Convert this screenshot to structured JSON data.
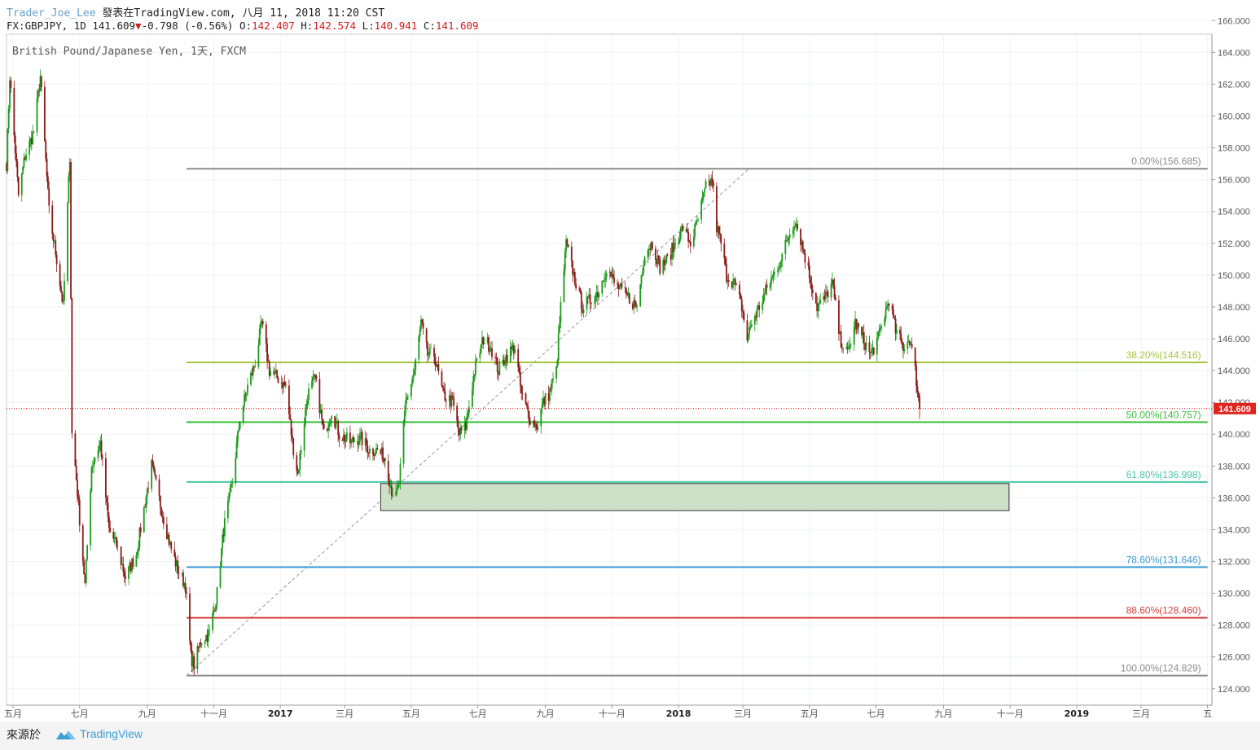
{
  "header": {
    "author": "Trader_Joe_Lee",
    "published": "發表在TradingView.com, 八月 11, 2018 11:20 CST",
    "symbol_info": "FX:GBPJPY, 1D 141.609",
    "change_arrow": "▼",
    "change": "-0.798 (-0.56%)",
    "o_label": "O:",
    "o_value": "142.407",
    "h_label": "H:",
    "h_value": "142.574",
    "l_label": "L:",
    "l_value": "140.941",
    "c_label": "C:",
    "c_value": "141.609"
  },
  "footer": {
    "source_label": "來源於",
    "brand": "TradingView"
  },
  "colors": {
    "up": "#1a9a1a",
    "down": "#8b1a1a",
    "grid": "#f0f3f6",
    "axis_text": "#555555"
  },
  "chart_data": {
    "type": "candlestick",
    "title": "British Pound/Japanese Yen, 1天, FXCM",
    "symbol": "FX:GBPJPY",
    "timeframe": "1D",
    "current_price": 141.609,
    "current_price_label": "141.609",
    "ylim": [
      123,
      166
    ],
    "y_ticks": [
      "124.000",
      "126.000",
      "128.000",
      "130.000",
      "132.000",
      "134.000",
      "136.000",
      "138.000",
      "140.000",
      "142.000",
      "144.000",
      "146.000",
      "148.000",
      "150.000",
      "152.000",
      "154.000",
      "156.000",
      "158.000",
      "160.000",
      "162.000",
      "164.000",
      "166.000"
    ],
    "x_labels": [
      {
        "label": "五月",
        "date": "2016-05-01"
      },
      {
        "label": "七月",
        "date": "2016-07-01"
      },
      {
        "label": "九月",
        "date": "2016-09-01"
      },
      {
        "label": "十一月",
        "date": "2016-11-01"
      },
      {
        "label": "2017",
        "date": "2017-01-01"
      },
      {
        "label": "三月",
        "date": "2017-03-01"
      },
      {
        "label": "五月",
        "date": "2017-05-01"
      },
      {
        "label": "七月",
        "date": "2017-07-01"
      },
      {
        "label": "九月",
        "date": "2017-09-01"
      },
      {
        "label": "十一月",
        "date": "2017-11-01"
      },
      {
        "label": "2018",
        "date": "2018-01-01"
      },
      {
        "label": "三月",
        "date": "2018-03-01"
      },
      {
        "label": "五月",
        "date": "2018-05-01"
      },
      {
        "label": "七月",
        "date": "2018-07-01"
      },
      {
        "label": "九月",
        "date": "2018-09-01"
      },
      {
        "label": "十一月",
        "date": "2018-11-01"
      },
      {
        "label": "2019",
        "date": "2019-01-01"
      },
      {
        "label": "三月",
        "date": "2019-03-01"
      },
      {
        "label": "五",
        "date": "2019-05-01"
      }
    ],
    "price_path": [
      [
        "2016-04-25",
        157.0
      ],
      [
        "2016-04-28",
        162.5
      ],
      [
        "2016-05-06",
        155.0
      ],
      [
        "2016-05-12",
        157.5
      ],
      [
        "2016-05-20",
        159.0
      ],
      [
        "2016-05-26",
        162.5
      ],
      [
        "2016-06-03",
        154.0
      ],
      [
        "2016-06-10",
        151.0
      ],
      [
        "2016-06-16",
        148.0
      ],
      [
        "2016-06-22",
        157.5
      ],
      [
        "2016-06-24",
        140.0
      ],
      [
        "2016-06-27",
        138.0
      ],
      [
        "2016-07-06",
        130.5
      ],
      [
        "2016-07-12",
        138.0
      ],
      [
        "2016-07-20",
        139.5
      ],
      [
        "2016-07-28",
        134.0
      ],
      [
        "2016-08-04",
        133.0
      ],
      [
        "2016-08-12",
        131.0
      ],
      [
        "2016-08-22",
        132.5
      ],
      [
        "2016-09-01",
        136.5
      ],
      [
        "2016-09-05",
        138.0
      ],
      [
        "2016-09-15",
        135.0
      ],
      [
        "2016-09-22",
        133.0
      ],
      [
        "2016-09-29",
        131.5
      ],
      [
        "2016-10-06",
        130.5
      ],
      [
        "2016-10-11",
        126.0
      ],
      [
        "2016-10-14",
        125.5
      ],
      [
        "2016-10-20",
        127.0
      ],
      [
        "2016-10-28",
        127.5
      ],
      [
        "2016-11-04",
        130.0
      ],
      [
        "2016-11-10",
        134.0
      ],
      [
        "2016-11-18",
        137.0
      ],
      [
        "2016-11-25",
        141.0
      ],
      [
        "2016-12-02",
        143.0
      ],
      [
        "2016-12-09",
        144.5
      ],
      [
        "2016-12-15",
        147.0
      ],
      [
        "2016-12-22",
        144.0
      ],
      [
        "2016-12-30",
        143.5
      ],
      [
        "2017-01-06",
        143.0
      ],
      [
        "2017-01-12",
        139.5
      ],
      [
        "2017-01-17",
        137.5
      ],
      [
        "2017-01-26",
        142.5
      ],
      [
        "2017-02-02",
        143.5
      ],
      [
        "2017-02-10",
        140.0
      ],
      [
        "2017-02-17",
        141.5
      ],
      [
        "2017-02-24",
        140.0
      ],
      [
        "2017-03-06",
        139.5
      ],
      [
        "2017-03-15",
        139.8
      ],
      [
        "2017-03-24",
        139.0
      ],
      [
        "2017-03-31",
        139.0
      ],
      [
        "2017-04-07",
        138.5
      ],
      [
        "2017-04-13",
        136.5
      ],
      [
        "2017-04-17",
        136.0
      ],
      [
        "2017-04-20",
        137.0
      ],
      [
        "2017-04-26",
        142.0
      ],
      [
        "2017-05-04",
        144.0
      ],
      [
        "2017-05-10",
        147.0
      ],
      [
        "2017-05-16",
        145.0
      ],
      [
        "2017-05-22",
        145.0
      ],
      [
        "2017-05-30",
        142.5
      ],
      [
        "2017-06-08",
        142.0
      ],
      [
        "2017-06-14",
        140.0
      ],
      [
        "2017-06-20",
        140.5
      ],
      [
        "2017-06-28",
        144.0
      ],
      [
        "2017-07-06",
        146.0
      ],
      [
        "2017-07-13",
        145.5
      ],
      [
        "2017-07-20",
        144.0
      ],
      [
        "2017-07-28",
        145.0
      ],
      [
        "2017-08-04",
        145.5
      ],
      [
        "2017-08-10",
        142.5
      ],
      [
        "2017-08-18",
        141.0
      ],
      [
        "2017-08-24",
        140.5
      ],
      [
        "2017-08-30",
        142.0
      ],
      [
        "2017-09-04",
        142.5
      ],
      [
        "2017-09-11",
        144.0
      ],
      [
        "2017-09-15",
        148.0
      ],
      [
        "2017-09-20",
        152.0
      ],
      [
        "2017-09-27",
        150.0
      ],
      [
        "2017-10-05",
        148.0
      ],
      [
        "2017-10-13",
        148.5
      ],
      [
        "2017-10-20",
        149.0
      ],
      [
        "2017-10-27",
        150.5
      ],
      [
        "2017-11-03",
        149.5
      ],
      [
        "2017-11-10",
        149.0
      ],
      [
        "2017-11-17",
        148.5
      ],
      [
        "2017-11-24",
        148.0
      ],
      [
        "2017-12-01",
        151.5
      ],
      [
        "2017-12-08",
        152.0
      ],
      [
        "2017-12-15",
        150.5
      ],
      [
        "2017-12-22",
        151.0
      ],
      [
        "2017-12-29",
        152.0
      ],
      [
        "2018-01-05",
        153.0
      ],
      [
        "2018-01-12",
        152.0
      ],
      [
        "2018-01-19",
        153.5
      ],
      [
        "2018-01-26",
        155.5
      ],
      [
        "2018-02-01",
        156.0
      ],
      [
        "2018-02-05",
        153.0
      ],
      [
        "2018-02-09",
        152.0
      ],
      [
        "2018-02-14",
        150.0
      ],
      [
        "2018-02-21",
        149.5
      ],
      [
        "2018-02-28",
        148.0
      ],
      [
        "2018-03-05",
        146.0
      ],
      [
        "2018-03-09",
        147.0
      ],
      [
        "2018-03-16",
        148.0
      ],
      [
        "2018-03-22",
        149.0
      ],
      [
        "2018-03-29",
        150.0
      ],
      [
        "2018-04-05",
        151.0
      ],
      [
        "2018-04-12",
        152.5
      ],
      [
        "2018-04-18",
        153.5
      ],
      [
        "2018-04-24",
        152.0
      ],
      [
        "2018-05-01",
        150.0
      ],
      [
        "2018-05-08",
        148.0
      ],
      [
        "2018-05-15",
        148.5
      ],
      [
        "2018-05-22",
        149.5
      ],
      [
        "2018-05-29",
        146.0
      ],
      [
        "2018-06-05",
        145.0
      ],
      [
        "2018-06-12",
        147.0
      ],
      [
        "2018-06-19",
        146.0
      ],
      [
        "2018-06-26",
        145.0
      ],
      [
        "2018-07-03",
        146.0
      ],
      [
        "2018-07-09",
        147.5
      ],
      [
        "2018-07-13",
        148.5
      ],
      [
        "2018-07-19",
        146.5
      ],
      [
        "2018-07-26",
        145.5
      ],
      [
        "2018-08-01",
        146.0
      ],
      [
        "2018-08-06",
        144.0
      ],
      [
        "2018-08-10",
        141.609
      ]
    ],
    "fibonacci": {
      "start_date": "2016-10-07",
      "end_date": "2019-05-01",
      "trend_line": [
        [
          "2016-10-07",
          124.829
        ],
        [
          "2018-02-01",
          156.685
        ]
      ],
      "levels": [
        {
          "label": "0.00%(156.685)",
          "price": 156.685,
          "color": "#8c8c8c"
        },
        {
          "label": "38.20%(144.516)",
          "price": 144.516,
          "color": "#a4c63a"
        },
        {
          "label": "50.00%(140.757)",
          "price": 140.757,
          "color": "#3cbf3c"
        },
        {
          "label": "61.80%(136.998)",
          "price": 136.998,
          "color": "#48c9a4"
        },
        {
          "label": "78.60%(131.646)",
          "price": 131.646,
          "color": "#3a9ad6"
        },
        {
          "label": "88.60%(128.460)",
          "price": 128.46,
          "color": "#d64040"
        },
        {
          "label": "100.00%(124.829)",
          "price": 124.829,
          "color": "#8c8c8c"
        }
      ]
    },
    "zone": {
      "start_date": "2017-04-03",
      "end_date": "2018-10-31",
      "price_low": 135.2,
      "price_high": 136.9,
      "color": "#cfe0c8"
    }
  }
}
